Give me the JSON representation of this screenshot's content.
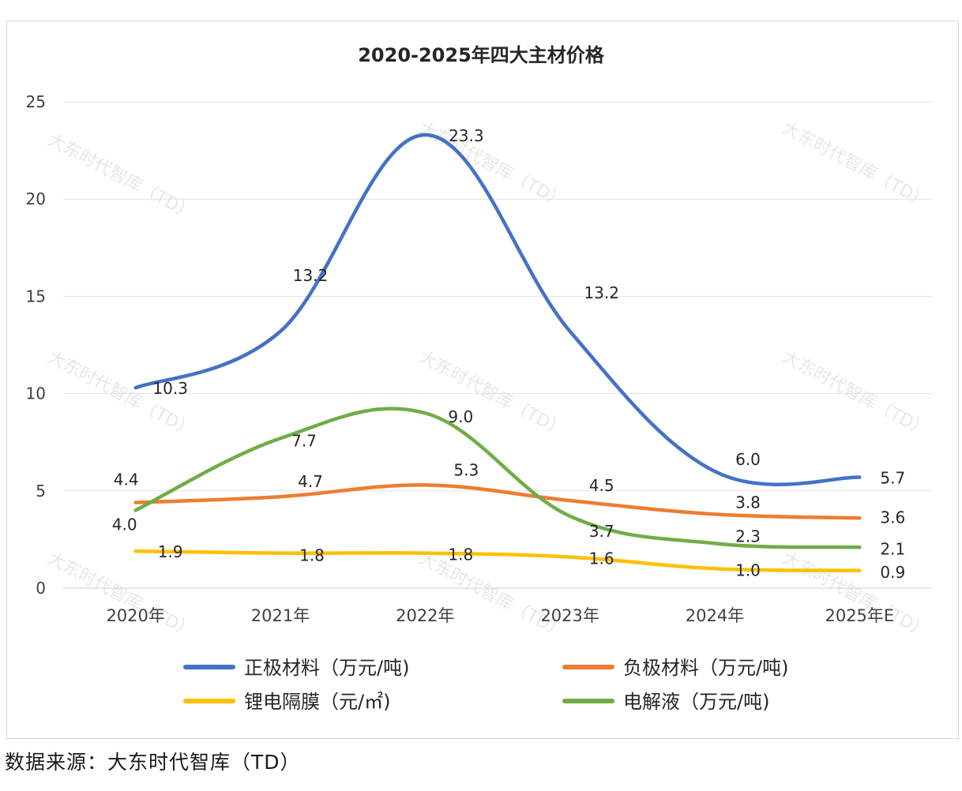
{
  "source_note": "数据来源：大东时代智库（TD）",
  "watermark": "大东时代智库（TD）",
  "colors": {
    "正极材料": "#4472C4",
    "负极材料": "#ED7D31",
    "锂电隔膜": "#FFC000",
    "电解液": "#70AD47"
  },
  "chart_data": {
    "type": "line",
    "title": "2020-2025年四大主材价格",
    "xlabel": "",
    "ylabel": "",
    "categories": [
      "2020年",
      "2021年",
      "2022年",
      "2023年",
      "2024年",
      "2025年E"
    ],
    "ylim": [
      0,
      25
    ],
    "yticks": [
      "0",
      "5",
      "10",
      "15",
      "20",
      "25"
    ],
    "grid": true,
    "legend_position": "bottom",
    "smooth": true,
    "series": [
      {
        "name": "正极材料（万元/吨)",
        "key": "正极材料",
        "values": [
          10.3,
          13.2,
          23.3,
          13.2,
          6.0,
          5.7
        ],
        "labels": [
          "10.3",
          "13.2",
          "23.3",
          "13.2",
          "6.0",
          "5.7"
        ]
      },
      {
        "name": "负极材料（万元/吨)",
        "key": "负极材料",
        "values": [
          4.4,
          4.7,
          5.3,
          4.5,
          3.8,
          3.6
        ],
        "labels": [
          "4.4",
          "4.7",
          "5.3",
          "4.5",
          "3.8",
          "3.6"
        ]
      },
      {
        "name": "锂电隔膜（元/㎡)",
        "key": "锂电隔膜",
        "values": [
          1.9,
          1.8,
          1.8,
          1.6,
          1.0,
          0.9
        ],
        "labels": [
          "1.9",
          "1.8",
          "1.8",
          "1.6",
          "1.0",
          "0.9"
        ]
      },
      {
        "name": "电解液（万元/吨)",
        "key": "电解液",
        "values": [
          4.0,
          7.7,
          9.0,
          3.7,
          2.3,
          2.1
        ],
        "labels": [
          "4.0",
          "7.7",
          "9.0",
          "3.7",
          "2.3",
          "2.1"
        ]
      }
    ]
  }
}
